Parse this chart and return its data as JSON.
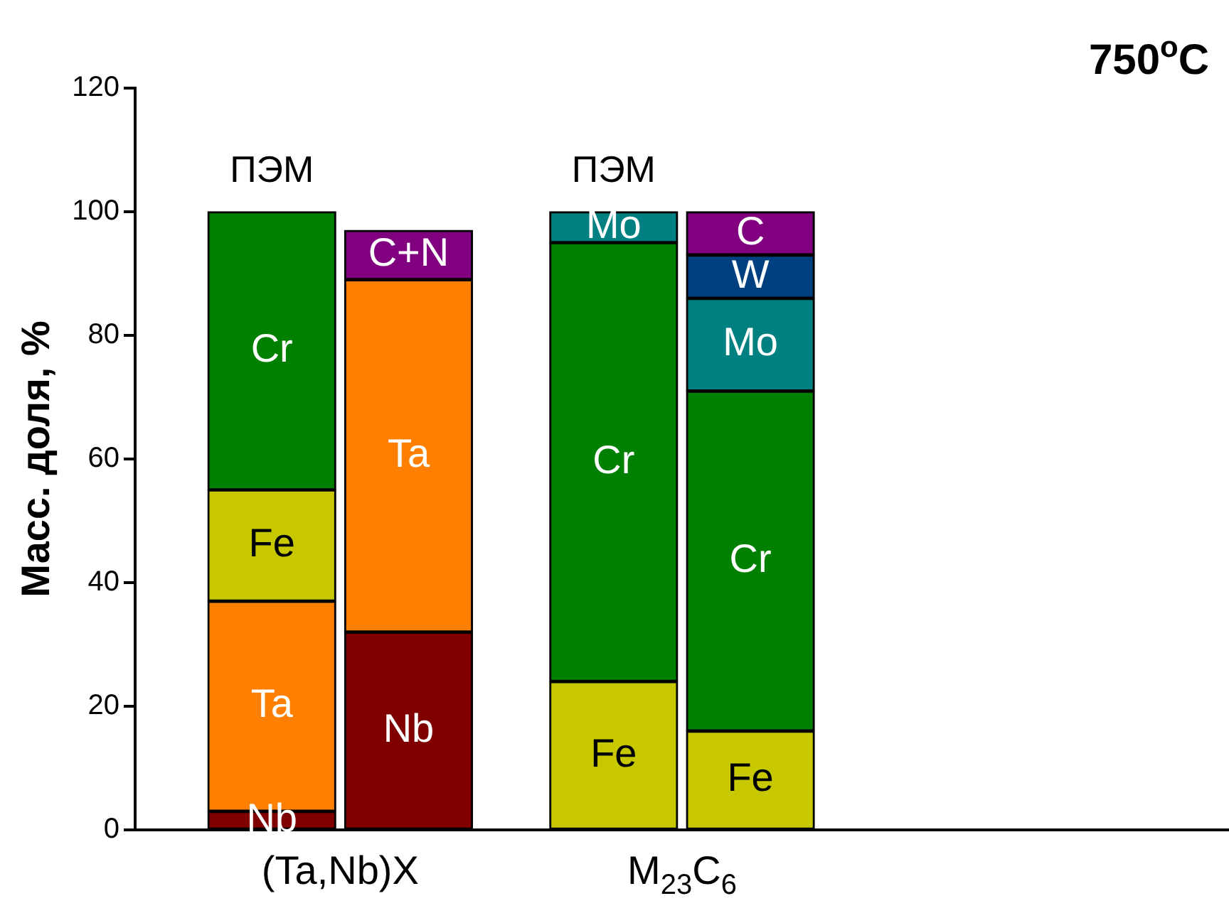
{
  "chart_data": {
    "type": "bar",
    "stacked": true,
    "title": "750$^{o}$C",
    "ylabel": "Масс. доля, %",
    "categories": [
      "ПЭМ",
      null,
      "ПЭМ",
      null
    ],
    "annotations": [
      "(Ta,Nb)X",
      "M$_{23}$C$_{6}$"
    ],
    "series": [
      {
        "name": "Nb",
        "color": "#800000",
        "values": [
          3,
          32,
          null,
          null
        ]
      },
      {
        "name": "Ta",
        "color": "#ff8000",
        "values": [
          34,
          57,
          null,
          null
        ]
      },
      {
        "name": "Fe",
        "color": "#c8c800",
        "values": [
          18,
          null,
          24,
          16
        ]
      },
      {
        "name": "Cr",
        "color": "#008000",
        "values": [
          45,
          null,
          71,
          55
        ]
      },
      {
        "name": "C+N",
        "color": "#800080",
        "values": [
          null,
          8,
          null,
          null
        ]
      },
      {
        "name": "Mo",
        "color": "#008080",
        "values": [
          null,
          null,
          5,
          15
        ]
      },
      {
        "name": "W",
        "color": "#004080",
        "values": [
          null,
          null,
          null,
          7
        ]
      },
      {
        "name": "C",
        "color": "#800080",
        "values": [
          null,
          null,
          null,
          7
        ]
      }
    ],
    "ylim": [
      0,
      120
    ],
    "yticks": [
      0,
      20,
      40,
      60,
      80,
      100,
      120
    ],
    "grid": false,
    "legend": false
  }
}
